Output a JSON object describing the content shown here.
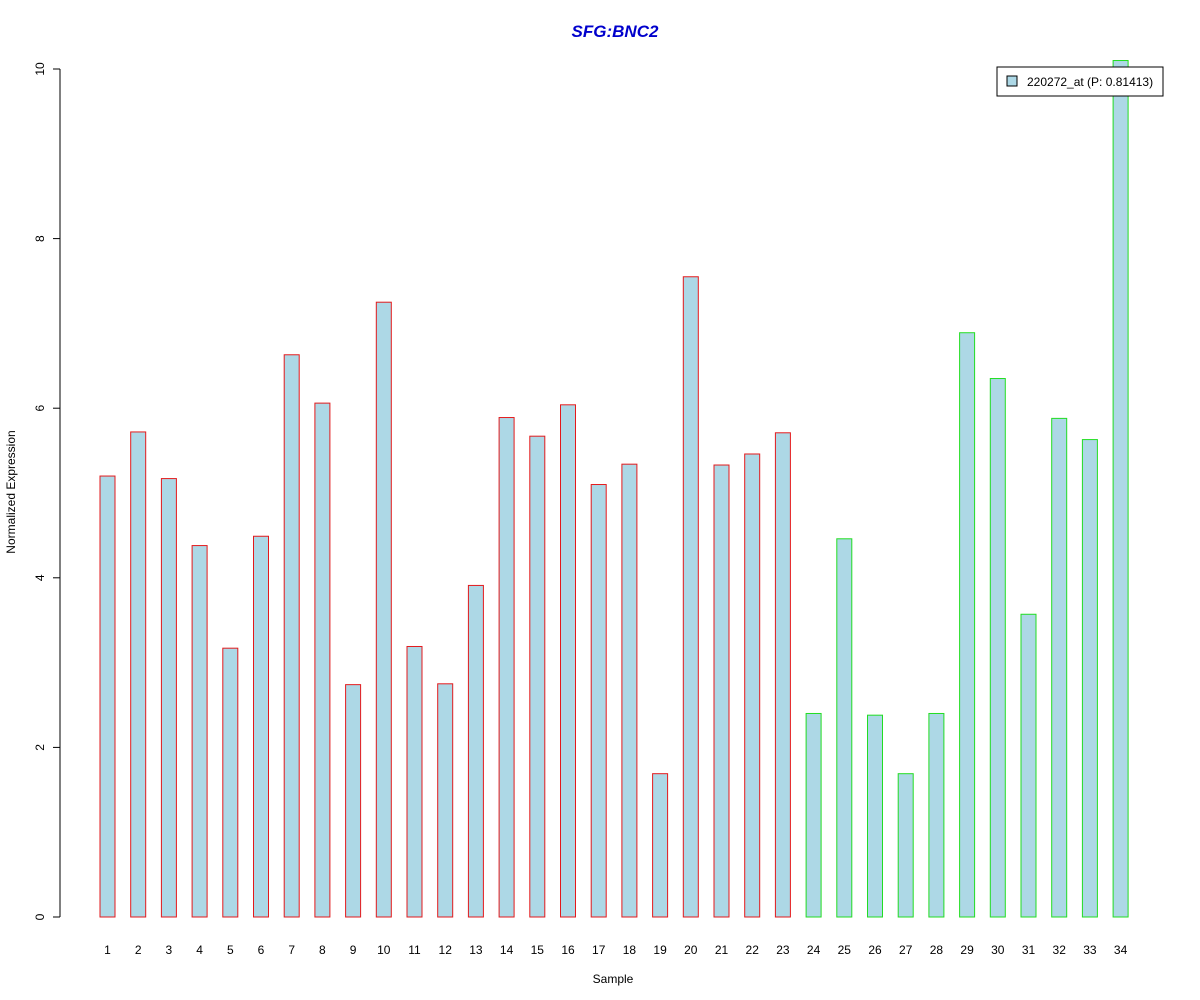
{
  "chart_data": {
    "type": "bar",
    "title": "SFG:BNC2",
    "xlabel": "Sample",
    "ylabel": "Normalized Expression",
    "ylim": [
      0,
      10
    ],
    "yticks": [
      0,
      2,
      4,
      6,
      8,
      10
    ],
    "categories": [
      "1",
      "2",
      "3",
      "4",
      "5",
      "6",
      "7",
      "8",
      "9",
      "10",
      "11",
      "12",
      "13",
      "14",
      "15",
      "16",
      "17",
      "18",
      "19",
      "20",
      "21",
      "22",
      "23",
      "24",
      "25",
      "26",
      "27",
      "28",
      "29",
      "30",
      "31",
      "32",
      "33",
      "34"
    ],
    "series": [
      {
        "name": "220272_at (P: 0.81413)",
        "values": [
          5.2,
          5.72,
          5.17,
          4.38,
          3.17,
          4.49,
          6.63,
          6.06,
          2.74,
          7.25,
          3.19,
          2.75,
          3.91,
          5.89,
          5.67,
          6.04,
          5.1,
          5.34,
          1.69,
          7.55,
          5.33,
          5.46,
          5.71,
          2.4,
          4.46,
          2.38,
          1.69,
          2.4,
          6.89,
          6.35,
          3.57,
          5.88,
          5.63,
          10.1
        ]
      }
    ],
    "bar_fill": "#add8e6",
    "group_colors": {
      "group1": "#e31a1c",
      "group2": "#22dd22"
    },
    "groups": [
      1,
      1,
      1,
      1,
      1,
      1,
      1,
      1,
      1,
      1,
      1,
      1,
      1,
      1,
      1,
      1,
      1,
      1,
      1,
      1,
      1,
      1,
      1,
      2,
      2,
      2,
      2,
      2,
      2,
      2,
      2,
      2,
      2,
      2
    ],
    "legend": {
      "label": "220272_at (P: 0.81413)",
      "position": "top-right",
      "swatch_fill": "#add8e6"
    },
    "grid": false
  }
}
